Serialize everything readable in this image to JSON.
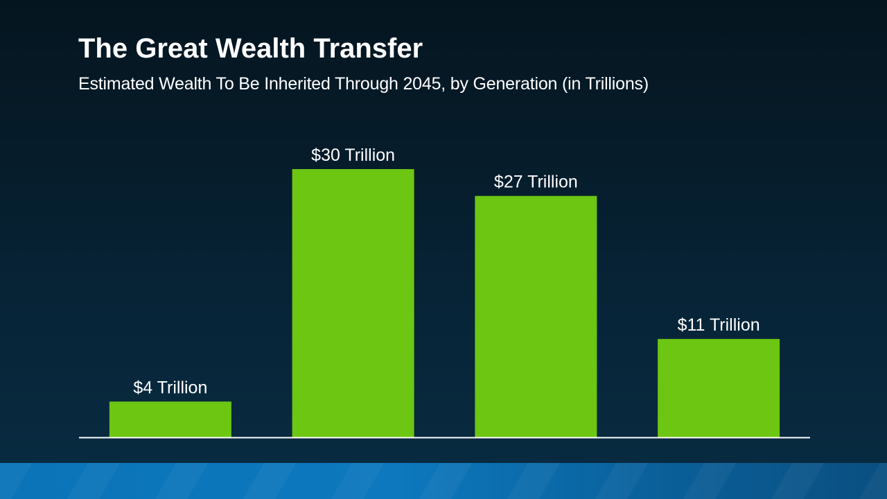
{
  "header": {
    "title": "The Great Wealth Transfer",
    "subtitle": "Estimated Wealth To Be Inherited Through 2045, by Generation (in Trillions)"
  },
  "colors": {
    "bar": "#6cc612",
    "axis": "#ffffff",
    "label": "#ffffff"
  },
  "chart_data": {
    "type": "bar",
    "title": "The Great Wealth Transfer",
    "subtitle": "Estimated Wealth To Be Inherited Through 2045, by Generation (in Trillions)",
    "categories": [
      "",
      "",
      "",
      ""
    ],
    "values": [
      4,
      30,
      27,
      11
    ],
    "data_labels": [
      "$4 Trillion",
      "$30 Trillion",
      "$27 Trillion",
      "$11 Trillion"
    ],
    "xlabel": "",
    "ylabel": "",
    "ylim": [
      0,
      30
    ],
    "grid": false,
    "legend": "none"
  }
}
